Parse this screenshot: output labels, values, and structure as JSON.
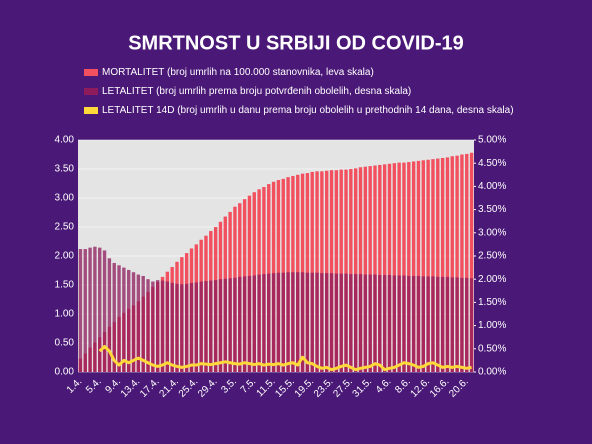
{
  "chart_data": {
    "type": "bar",
    "title": "SMRTNOST U SRBIJI OD COVID-19",
    "categories": [
      "1.4.",
      null,
      null,
      null,
      "5.4.",
      null,
      null,
      null,
      "9.4.",
      null,
      null,
      null,
      "13.4.",
      null,
      null,
      null,
      "17.4.",
      null,
      null,
      null,
      "21.4.",
      null,
      null,
      null,
      "25.4.",
      null,
      null,
      null,
      "29.4.",
      null,
      null,
      null,
      "3.5.",
      null,
      null,
      null,
      "7.5.",
      null,
      null,
      null,
      "11.5.",
      null,
      null,
      null,
      "15.5.",
      null,
      null,
      null,
      "19.5.",
      null,
      null,
      null,
      "23.5.",
      null,
      null,
      null,
      "27.5.",
      null,
      null,
      null,
      "31.5.",
      null,
      null,
      null,
      "4.6.",
      null,
      null,
      null,
      "8.6.",
      null,
      null,
      null,
      "12.6.",
      null,
      null,
      null,
      "16.6.",
      null,
      null,
      null,
      "20.6.",
      null
    ],
    "series": [
      {
        "name": "MORTALITET (broj umrlih na 100.000 stanovnika, leva skala)",
        "type": "bar",
        "color": "#f2505f",
        "values": [
          0.23,
          0.32,
          0.42,
          0.51,
          0.6,
          0.69,
          0.78,
          0.86,
          0.95,
          1.02,
          1.09,
          1.15,
          1.22,
          1.3,
          1.38,
          1.47,
          1.55,
          1.64,
          1.73,
          1.81,
          1.9,
          1.98,
          2.05,
          2.13,
          2.2,
          2.28,
          2.35,
          2.43,
          2.5,
          2.59,
          2.68,
          2.76,
          2.85,
          2.91,
          2.98,
          3.04,
          3.1,
          3.15,
          3.19,
          3.24,
          3.28,
          3.31,
          3.33,
          3.36,
          3.38,
          3.4,
          3.42,
          3.43,
          3.45,
          3.46,
          3.46,
          3.47,
          3.48,
          3.48,
          3.49,
          3.49,
          3.5,
          3.51,
          3.53,
          3.54,
          3.55,
          3.56,
          3.57,
          3.58,
          3.59,
          3.6,
          3.61,
          3.61,
          3.62,
          3.63,
          3.64,
          3.65,
          3.66,
          3.67,
          3.68,
          3.69,
          3.7,
          3.72,
          3.73,
          3.75,
          3.76,
          3.78
        ]
      },
      {
        "name": "LETALITET (broj umrlih prema broju potvrđenih obolelih, desna skala)",
        "type": "bar",
        "axis": "y2",
        "color": "#8e1b5c",
        "values": [
          2.65,
          2.65,
          2.68,
          2.7,
          2.68,
          2.62,
          2.45,
          2.35,
          2.3,
          2.25,
          2.2,
          2.15,
          2.1,
          2.07,
          2.0,
          1.95,
          1.98,
          1.97,
          1.95,
          1.92,
          1.9,
          1.89,
          1.9,
          1.92,
          1.93,
          1.95,
          1.96,
          1.97,
          1.98,
          2.0,
          2.01,
          2.02,
          2.03,
          2.05,
          2.06,
          2.07,
          2.08,
          2.1,
          2.11,
          2.12,
          2.13,
          2.14,
          2.14,
          2.15,
          2.15,
          2.15,
          2.15,
          2.14,
          2.14,
          2.14,
          2.13,
          2.13,
          2.13,
          2.12,
          2.12,
          2.12,
          2.11,
          2.11,
          2.11,
          2.1,
          2.1,
          2.1,
          2.09,
          2.09,
          2.09,
          2.08,
          2.08,
          2.08,
          2.07,
          2.07,
          2.07,
          2.06,
          2.06,
          2.06,
          2.05,
          2.05,
          2.05,
          2.04,
          2.04,
          2.03,
          2.03,
          2.02
        ]
      },
      {
        "name": "LETALITET 14D (broj umrlih u danu prema broju obolelih u prethodnih 14 dana, desna skala)",
        "type": "line",
        "axis": "y2",
        "color": "#ffd83a",
        "values": [
          null,
          null,
          null,
          null,
          0.45,
          0.55,
          0.45,
          0.25,
          0.15,
          0.25,
          0.2,
          0.25,
          0.3,
          0.25,
          0.2,
          0.15,
          0.12,
          0.15,
          0.2,
          0.15,
          0.12,
          0.1,
          0.12,
          0.15,
          0.15,
          0.18,
          0.17,
          0.16,
          0.18,
          0.2,
          0.22,
          0.2,
          0.18,
          0.17,
          0.2,
          0.18,
          0.16,
          0.18,
          0.15,
          0.17,
          0.16,
          0.18,
          0.15,
          0.18,
          0.2,
          0.15,
          0.32,
          0.2,
          0.18,
          0.12,
          0.08,
          0.1,
          0.05,
          0.08,
          0.12,
          0.15,
          0.1,
          0.05,
          0.08,
          0.1,
          0.12,
          0.18,
          0.15,
          0.05,
          0.08,
          0.1,
          0.15,
          0.2,
          0.18,
          0.15,
          0.1,
          0.12,
          0.18,
          0.2,
          0.15,
          0.1,
          0.12,
          0.1,
          0.12,
          0.1,
          0.08,
          0.1
        ]
      }
    ],
    "ylim": [
      0,
      4
    ],
    "yticks": [
      {
        "value": 0,
        "label": "0.00"
      },
      {
        "value": 0.5,
        "label": "0.50"
      },
      {
        "value": 1,
        "label": "1.00"
      },
      {
        "value": 1.5,
        "label": "1.50"
      },
      {
        "value": 2,
        "label": "2.00"
      },
      {
        "value": 2.5,
        "label": "2.50"
      },
      {
        "value": 3,
        "label": "3.00"
      },
      {
        "value": 3.5,
        "label": "3.50"
      },
      {
        "value": 4,
        "label": "4.00"
      }
    ],
    "y2lim": [
      0,
      5
    ],
    "y2ticks": [
      {
        "value": 0,
        "label": "0.00%"
      },
      {
        "value": 0.5,
        "label": "0.50%"
      },
      {
        "value": 1,
        "label": "1.00%"
      },
      {
        "value": 1.5,
        "label": "1.50%"
      },
      {
        "value": 2,
        "label": "2.00%"
      },
      {
        "value": 2.5,
        "label": "2.50%"
      },
      {
        "value": 3,
        "label": "3.00%"
      },
      {
        "value": 3.5,
        "label": "3.50%"
      },
      {
        "value": 4,
        "label": "4.00%"
      },
      {
        "value": 4.5,
        "label": "4.50%"
      },
      {
        "value": 5,
        "label": "5.00%"
      }
    ],
    "grid": true,
    "legend": "top"
  }
}
